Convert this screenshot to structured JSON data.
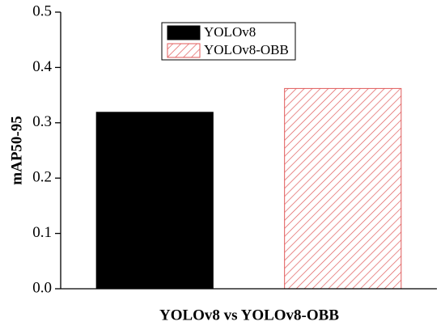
{
  "chart_data": {
    "type": "bar",
    "ylabel": "mAP50-95",
    "xlabel": "YOLOv8 vs YOLOv8-OBB",
    "categories": [
      null
    ],
    "series": [
      {
        "name": "YOLOv8",
        "color": "#000000",
        "values": [
          0.319
        ]
      },
      {
        "name": "YOLOv8-OBB",
        "color": "#e05a5a",
        "hatch": true,
        "values": [
          0.362
        ]
      }
    ],
    "ylim": [
      0,
      0.5
    ],
    "yticks": [
      {
        "value": 0,
        "label": "0.0"
      },
      0.1,
      0.2,
      0.3,
      0.4,
      0.5
    ],
    "legend": "top"
  }
}
